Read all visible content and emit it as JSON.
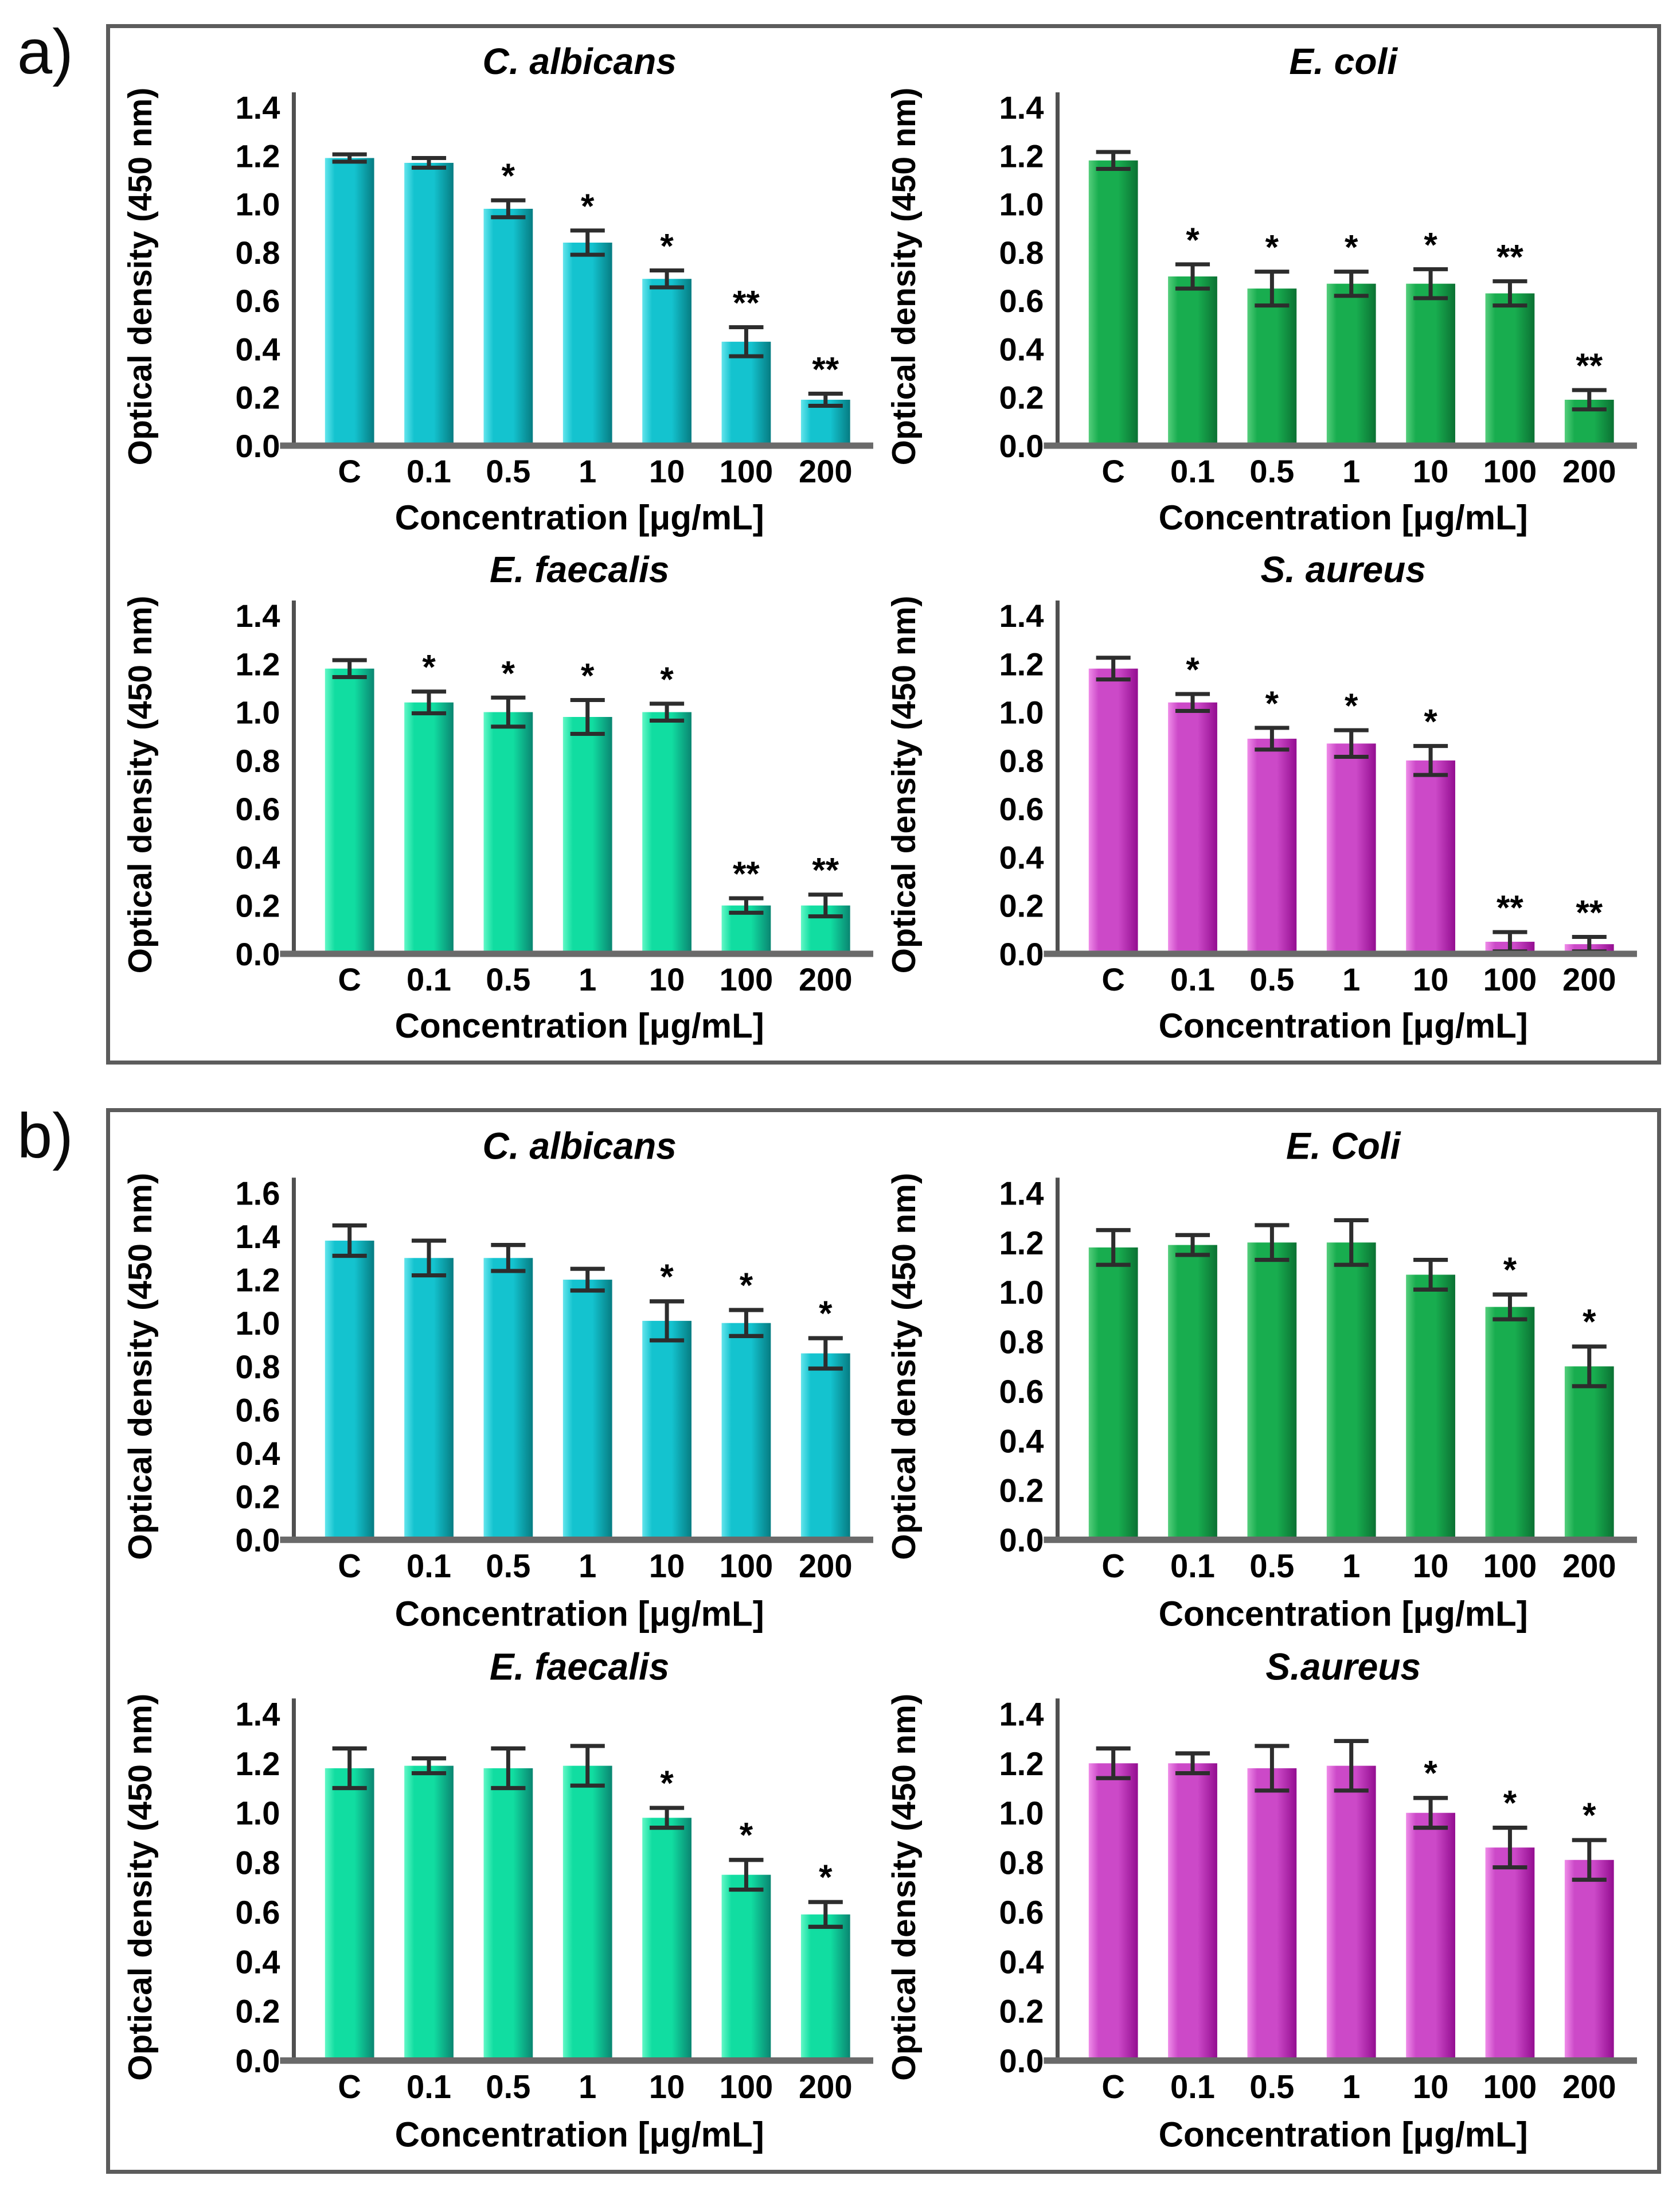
{
  "page": {
    "background": "#ffffff",
    "panel_border_color": "#5c5c5c"
  },
  "panels": [
    {
      "id": "a",
      "label": "a)"
    },
    {
      "id": "b",
      "label": "b)"
    }
  ],
  "style_colors": {
    "axis_color": "#4f4f4f",
    "baseline_color": "#6a6a6a",
    "error_bar_color": "#2d2d2d",
    "text_color": "#000000"
  },
  "palettes": {
    "cyan": {
      "light": "#63E5EC",
      "mid": "#14C3CF",
      "dark": "#067C82"
    },
    "green": {
      "light": "#55CE7C",
      "mid": "#18AD4F",
      "dark": "#0B7133"
    },
    "springgreen": {
      "light": "#62F8C6",
      "mid": "#11DDA1",
      "dark": "#0A8571"
    },
    "magenta": {
      "light": "#EF8DE9",
      "mid": "#CC49C8",
      "dark": "#930D90"
    }
  },
  "chart_data": [
    {
      "panel": "a",
      "type": "bar",
      "title": "C. albicans",
      "color": "cyan",
      "categories": [
        "C",
        "0.1",
        "0.5",
        "1",
        "10",
        "100",
        "200"
      ],
      "values": [
        1.19,
        1.17,
        0.98,
        0.84,
        0.69,
        0.43,
        0.19
      ],
      "errors": [
        0.015,
        0.02,
        0.035,
        0.05,
        0.035,
        0.06,
        0.025
      ],
      "sig": [
        "",
        "",
        "*",
        "*",
        "*",
        "**",
        "**"
      ],
      "xlabel": "Concentration [μg/mL]",
      "ylabel": "Optical density (450 nm)",
      "ylim": [
        0,
        1.4
      ],
      "ystep": 0.2,
      "grid": false,
      "legend": false
    },
    {
      "panel": "a",
      "type": "bar",
      "title": "E. coli",
      "color": "green",
      "categories": [
        "C",
        "0.1",
        "0.5",
        "1",
        "10",
        "100",
        "200"
      ],
      "values": [
        1.18,
        0.7,
        0.65,
        0.67,
        0.67,
        0.63,
        0.19
      ],
      "errors": [
        0.035,
        0.05,
        0.07,
        0.05,
        0.06,
        0.05,
        0.04
      ],
      "sig": [
        "",
        "*",
        "*",
        "*",
        "*",
        "**",
        "**"
      ],
      "xlabel": "Concentration [μg/mL]",
      "ylabel": "Optical density (450 nm)",
      "ylim": [
        0,
        1.4
      ],
      "ystep": 0.2,
      "grid": false,
      "legend": false
    },
    {
      "panel": "a",
      "type": "bar",
      "title": "E. faecalis",
      "color": "springgreen",
      "categories": [
        "C",
        "0.1",
        "0.5",
        "1",
        "10",
        "100",
        "200"
      ],
      "values": [
        1.18,
        1.04,
        1.0,
        0.98,
        1.0,
        0.2,
        0.2
      ],
      "errors": [
        0.035,
        0.045,
        0.06,
        0.07,
        0.035,
        0.03,
        0.045
      ],
      "sig": [
        "",
        "*",
        "*",
        "*",
        "*",
        "**",
        "**"
      ],
      "xlabel": "Concentration [μg/mL]",
      "ylabel": "Optical density (450 nm)",
      "ylim": [
        0,
        1.4
      ],
      "ystep": 0.2,
      "grid": false,
      "legend": false
    },
    {
      "panel": "a",
      "type": "bar",
      "title": "S. aureus",
      "color": "magenta",
      "categories": [
        "C",
        "0.1",
        "0.5",
        "1",
        "10",
        "100",
        "200"
      ],
      "values": [
        1.18,
        1.04,
        0.89,
        0.87,
        0.8,
        0.05,
        0.04
      ],
      "errors": [
        0.045,
        0.035,
        0.045,
        0.055,
        0.06,
        0.04,
        0.03
      ],
      "sig": [
        "",
        "*",
        "*",
        "*",
        "*",
        "**",
        "**"
      ],
      "xlabel": "Concentration [μg/mL]",
      "ylabel": "Optical density (450 nm)",
      "ylim": [
        0,
        1.4
      ],
      "ystep": 0.2,
      "grid": false,
      "legend": false
    },
    {
      "panel": "b",
      "type": "bar",
      "title": "C. albicans",
      "color": "cyan",
      "categories": [
        "C",
        "0.1",
        "0.5",
        "1",
        "10",
        "100",
        "200"
      ],
      "values": [
        1.38,
        1.3,
        1.3,
        1.2,
        1.01,
        1.0,
        0.86
      ],
      "errors": [
        0.07,
        0.08,
        0.06,
        0.05,
        0.09,
        0.06,
        0.07
      ],
      "sig": [
        "",
        "",
        "",
        "",
        "*",
        "*",
        "*"
      ],
      "xlabel": "Concentration [μg/mL]",
      "ylabel": "Optical density (450 nm)",
      "ylim": [
        0,
        1.6
      ],
      "ystep": 0.2,
      "grid": false,
      "legend": false
    },
    {
      "panel": "b",
      "type": "bar",
      "title": "E. Coli",
      "color": "green",
      "categories": [
        "C",
        "0.1",
        "0.5",
        "1",
        "10",
        "100",
        "200"
      ],
      "values": [
        1.18,
        1.19,
        1.2,
        1.2,
        1.07,
        0.94,
        0.7
      ],
      "errors": [
        0.07,
        0.04,
        0.07,
        0.09,
        0.06,
        0.05,
        0.08
      ],
      "sig": [
        "",
        "",
        "",
        "",
        "",
        "*",
        "*"
      ],
      "xlabel": "Concentration [μg/mL]",
      "ylabel": "Optical density (450 nm)",
      "ylim": [
        0,
        1.4
      ],
      "ystep": 0.2,
      "grid": false,
      "legend": false
    },
    {
      "panel": "b",
      "type": "bar",
      "title": "E. faecalis",
      "color": "springgreen",
      "categories": [
        "C",
        "0.1",
        "0.5",
        "1",
        "10",
        "100",
        "200"
      ],
      "values": [
        1.18,
        1.19,
        1.18,
        1.19,
        0.98,
        0.75,
        0.59
      ],
      "errors": [
        0.08,
        0.03,
        0.08,
        0.08,
        0.04,
        0.06,
        0.05
      ],
      "sig": [
        "",
        "",
        "",
        "",
        "*",
        "*",
        "*"
      ],
      "xlabel": "Concentration [μg/mL]",
      "ylabel": "Optical density (450 nm)",
      "ylim": [
        0,
        1.4
      ],
      "ystep": 0.2,
      "grid": false,
      "legend": false
    },
    {
      "panel": "b",
      "type": "bar",
      "title": "S.aureus",
      "color": "magenta",
      "categories": [
        "C",
        "0.1",
        "0.5",
        "1",
        "10",
        "100",
        "200"
      ],
      "values": [
        1.2,
        1.2,
        1.18,
        1.19,
        1.0,
        0.86,
        0.81
      ],
      "errors": [
        0.06,
        0.04,
        0.09,
        0.1,
        0.06,
        0.08,
        0.08
      ],
      "sig": [
        "",
        "",
        "",
        "",
        "*",
        "*",
        "*"
      ],
      "xlabel": "Concentration [μg/mL]",
      "ylabel": "Optical density (450 nm)",
      "ylim": [
        0,
        1.4
      ],
      "ystep": 0.2,
      "grid": false,
      "legend": false
    }
  ]
}
